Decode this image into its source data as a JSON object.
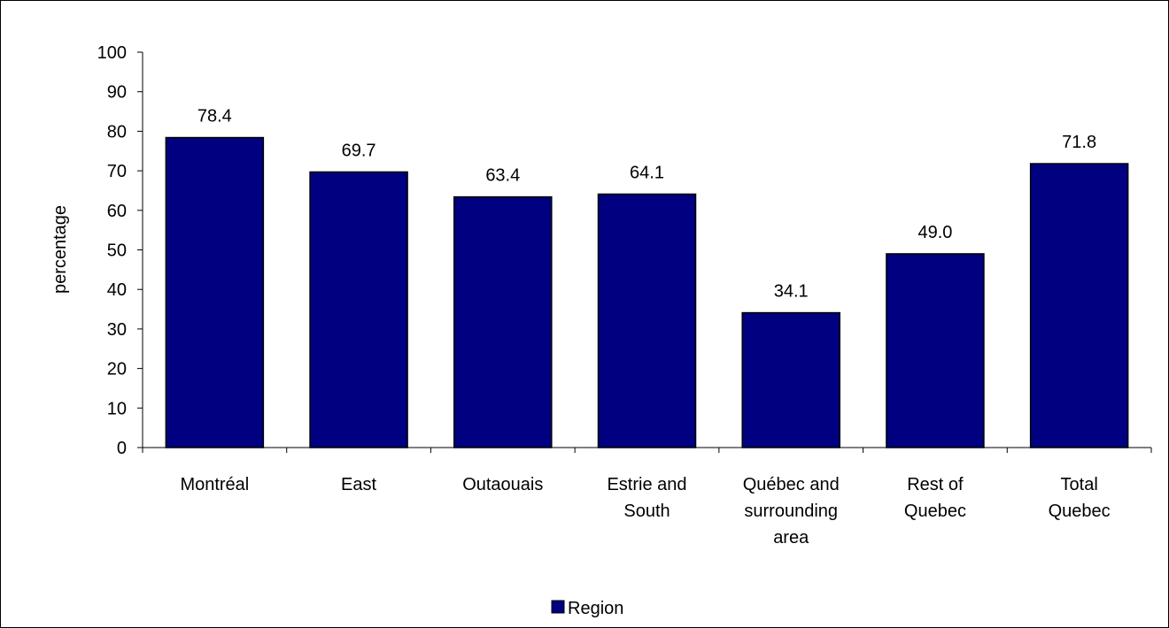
{
  "chart_data": {
    "type": "bar",
    "categories": [
      [
        "Montréal"
      ],
      [
        "East"
      ],
      [
        "Outaouais"
      ],
      [
        "Estrie and",
        "South"
      ],
      [
        "Québec and",
        "surrounding",
        "area"
      ],
      [
        "Rest of",
        "Quebec"
      ],
      [
        "Total",
        "Quebec"
      ]
    ],
    "series": [
      {
        "name": "Region",
        "values": [
          78.4,
          69.7,
          63.4,
          64.1,
          34.1,
          49.0,
          71.8
        ],
        "labels": [
          "78.4",
          "69.7",
          "63.4",
          "64.1",
          "34.1",
          "49.0",
          "71.8"
        ],
        "color": "#000080"
      }
    ],
    "ylabel": "percentage",
    "xlabel": "",
    "ylim": [
      0,
      100
    ],
    "yticks": [
      "0",
      "10",
      "20",
      "30",
      "40",
      "50",
      "60",
      "70",
      "80",
      "90",
      "100"
    ],
    "grid": false,
    "legend": "bottom-center"
  }
}
